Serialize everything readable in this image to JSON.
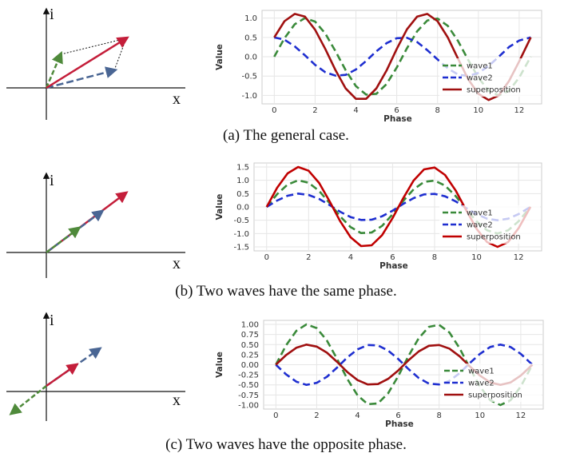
{
  "captions": [
    "(a) The general case.",
    "(b) Two waves have the same phase.",
    "(c) Two waves have the opposite phase."
  ],
  "vector_diagram": {
    "y_axis_label": "i",
    "x_axis_label": "x"
  },
  "colors": {
    "wave1": "#3a8a3a",
    "wave2": "#1f2fd0",
    "superposition": "#a01010",
    "vector_blue": "#4a6694"
  },
  "chart_data": [
    {
      "type": "line",
      "xlabel": "Phase",
      "ylabel": "Value",
      "xlim": [
        -0.6,
        13.1
      ],
      "ylim": [
        -1.22,
        1.2
      ],
      "xticks": [
        0,
        2,
        4,
        6,
        8,
        10,
        12
      ],
      "xtick_labels": [
        "0",
        "2",
        "4",
        "6",
        "8",
        "10",
        "12"
      ],
      "yticks": [
        1.0,
        0.5,
        0.0,
        -0.5,
        -1.0
      ],
      "ytick_labels": [
        "1.0",
        "0.5",
        "0.0",
        "-0.5",
        "-1.0"
      ],
      "grid": true,
      "legend": "bottom-right",
      "series": [
        {
          "name": "wave1",
          "style": "dashed",
          "color": "#3a8a3a",
          "x": [
            0,
            0.5,
            1,
            1.5,
            2,
            2.5,
            3,
            3.5,
            4,
            4.5,
            5,
            5.5,
            6,
            6.5,
            7,
            7.5,
            8,
            8.5,
            9,
            9.5,
            10,
            10.5,
            11,
            11.5,
            12,
            12.566
          ],
          "y": [
            0.0,
            0.48,
            0.84,
            1.0,
            0.91,
            0.6,
            0.14,
            -0.35,
            -0.76,
            -0.98,
            -0.96,
            -0.71,
            -0.28,
            0.22,
            0.66,
            0.94,
            0.99,
            0.8,
            0.41,
            -0.08,
            -0.54,
            -0.88,
            -1.0,
            -0.88,
            -0.54,
            0.0
          ]
        },
        {
          "name": "wave2",
          "style": "dashed",
          "color": "#1f2fd0",
          "x": [
            0,
            0.5,
            1,
            1.5,
            2,
            2.5,
            3,
            3.5,
            4,
            4.5,
            5,
            5.5,
            6,
            6.5,
            7,
            7.5,
            8,
            8.5,
            9,
            9.5,
            10,
            10.5,
            11,
            11.5,
            12,
            12.566
          ],
          "y": [
            0.5,
            0.44,
            0.27,
            0.04,
            -0.21,
            -0.4,
            -0.49,
            -0.47,
            -0.33,
            -0.11,
            0.14,
            0.35,
            0.48,
            0.49,
            0.38,
            0.17,
            -0.07,
            -0.3,
            -0.46,
            -0.5,
            -0.42,
            -0.24,
            0.0,
            0.25,
            0.42,
            0.5
          ]
        },
        {
          "name": "superposition",
          "style": "solid",
          "color": "#a01010",
          "x": [
            0,
            0.5,
            1,
            1.5,
            2,
            2.5,
            3,
            3.5,
            4,
            4.5,
            5,
            5.5,
            6,
            6.5,
            7,
            7.5,
            8,
            8.5,
            9,
            9.5,
            10,
            10.5,
            11,
            11.5,
            12,
            12.566
          ],
          "y": [
            0.5,
            0.92,
            1.11,
            1.04,
            0.7,
            0.2,
            -0.35,
            -0.82,
            -1.09,
            -1.09,
            -0.82,
            -0.36,
            0.2,
            0.71,
            1.04,
            1.11,
            0.92,
            0.5,
            -0.05,
            -0.58,
            -0.96,
            -1.12,
            -1.0,
            -0.63,
            -0.12,
            0.5
          ]
        }
      ]
    },
    {
      "type": "line",
      "xlabel": "Phase",
      "ylabel": "Value",
      "xlim": [
        -0.6,
        13.1
      ],
      "ylim": [
        -1.65,
        1.65
      ],
      "xticks": [
        0,
        2,
        4,
        6,
        8,
        10,
        12
      ],
      "xtick_labels": [
        "0",
        "2",
        "4",
        "6",
        "8",
        "10",
        "12"
      ],
      "yticks": [
        1.5,
        1.0,
        0.5,
        0.0,
        -0.5,
        -1.0,
        -1.5
      ],
      "ytick_labels": [
        "1.5",
        "1.0",
        "0.5",
        "0.0",
        "-0.5",
        "-1.0",
        "-1.5"
      ],
      "grid": true,
      "legend": "bottom-right",
      "series": [
        {
          "name": "wave1",
          "style": "dashed",
          "color": "#3a8a3a",
          "x": [
            0,
            0.5,
            1,
            1.5,
            2,
            2.5,
            3,
            3.5,
            4,
            4.5,
            5,
            5.5,
            6,
            6.5,
            7,
            7.5,
            8,
            8.5,
            9,
            9.5,
            10,
            10.5,
            11,
            11.5,
            12,
            12.566
          ],
          "y": [
            0.0,
            0.48,
            0.84,
            1.0,
            0.91,
            0.6,
            0.14,
            -0.35,
            -0.76,
            -0.98,
            -0.96,
            -0.71,
            -0.28,
            0.22,
            0.66,
            0.94,
            0.99,
            0.8,
            0.41,
            -0.08,
            -0.54,
            -0.88,
            -1.0,
            -0.88,
            -0.54,
            0.0
          ]
        },
        {
          "name": "wave2",
          "style": "dashed",
          "color": "#1f2fd0",
          "x": [
            0,
            0.5,
            1,
            1.5,
            2,
            2.5,
            3,
            3.5,
            4,
            4.5,
            5,
            5.5,
            6,
            6.5,
            7,
            7.5,
            8,
            8.5,
            9,
            9.5,
            10,
            10.5,
            11,
            11.5,
            12,
            12.566
          ],
          "y": [
            0.0,
            0.24,
            0.42,
            0.5,
            0.45,
            0.3,
            0.07,
            -0.18,
            -0.38,
            -0.49,
            -0.48,
            -0.35,
            -0.14,
            0.11,
            0.33,
            0.47,
            0.49,
            0.4,
            0.21,
            -0.04,
            -0.27,
            -0.44,
            -0.5,
            -0.44,
            -0.27,
            0.0
          ]
        },
        {
          "name": "superposition",
          "style": "solid",
          "color": "#c00000",
          "x": [
            0,
            0.5,
            1,
            1.5,
            2,
            2.5,
            3,
            3.5,
            4,
            4.5,
            5,
            5.5,
            6,
            6.5,
            7,
            7.5,
            8,
            8.5,
            9,
            9.5,
            10,
            10.5,
            11,
            11.5,
            12,
            12.566
          ],
          "y": [
            0.0,
            0.72,
            1.26,
            1.5,
            1.36,
            0.9,
            0.21,
            -0.53,
            -1.14,
            -1.47,
            -1.44,
            -1.06,
            -0.42,
            0.32,
            0.99,
            1.41,
            1.48,
            1.2,
            0.62,
            -0.11,
            -0.82,
            -1.32,
            -1.5,
            -1.32,
            -0.8,
            0.0
          ]
        }
      ]
    },
    {
      "type": "line",
      "xlabel": "Phase",
      "ylabel": "Value",
      "xlim": [
        -0.6,
        13.1
      ],
      "ylim": [
        -1.1,
        1.1
      ],
      "xticks": [
        0,
        2,
        4,
        6,
        8,
        10,
        12
      ],
      "xtick_labels": [
        "0",
        "2",
        "4",
        "6",
        "8",
        "10",
        "12"
      ],
      "yticks": [
        1.0,
        0.75,
        0.5,
        0.25,
        0.0,
        -0.25,
        -0.5,
        -0.75,
        -1.0
      ],
      "ytick_labels": [
        "1.00",
        "0.75",
        "0.50",
        "0.25",
        "0.00",
        "-0.25",
        "-0.50",
        "-0.75",
        "-1.00"
      ],
      "grid": true,
      "legend": "bottom-right",
      "series": [
        {
          "name": "wave1",
          "style": "dashed",
          "color": "#3a8a3a",
          "x": [
            0,
            0.5,
            1,
            1.5,
            2,
            2.5,
            3,
            3.5,
            4,
            4.5,
            5,
            5.5,
            6,
            6.5,
            7,
            7.5,
            8,
            8.5,
            9,
            9.5,
            10,
            10.5,
            11,
            11.5,
            12,
            12.566
          ],
          "y": [
            0.0,
            0.48,
            0.84,
            1.0,
            0.91,
            0.6,
            0.14,
            -0.35,
            -0.76,
            -0.98,
            -0.96,
            -0.71,
            -0.28,
            0.22,
            0.66,
            0.94,
            0.99,
            0.8,
            0.41,
            -0.08,
            -0.54,
            -0.88,
            -1.0,
            -0.88,
            -0.54,
            0.0
          ]
        },
        {
          "name": "wave2",
          "style": "dashed",
          "color": "#1f2fd0",
          "x": [
            0,
            0.5,
            1,
            1.5,
            2,
            2.5,
            3,
            3.5,
            4,
            4.5,
            5,
            5.5,
            6,
            6.5,
            7,
            7.5,
            8,
            8.5,
            9,
            9.5,
            10,
            10.5,
            11,
            11.5,
            12,
            12.566
          ],
          "y": [
            0.0,
            -0.24,
            -0.42,
            -0.5,
            -0.45,
            -0.3,
            -0.07,
            0.18,
            0.38,
            0.49,
            0.48,
            0.35,
            0.14,
            -0.11,
            -0.33,
            -0.47,
            -0.49,
            -0.4,
            -0.21,
            0.04,
            0.27,
            0.44,
            0.5,
            0.44,
            0.27,
            0.0
          ]
        },
        {
          "name": "superposition",
          "style": "solid",
          "color": "#a01010",
          "x": [
            0,
            0.5,
            1,
            1.5,
            2,
            2.5,
            3,
            3.5,
            4,
            4.5,
            5,
            5.5,
            6,
            6.5,
            7,
            7.5,
            8,
            8.5,
            9,
            9.5,
            10,
            10.5,
            11,
            11.5,
            12,
            12.566
          ],
          "y": [
            0.0,
            0.24,
            0.42,
            0.5,
            0.45,
            0.3,
            0.07,
            -0.18,
            -0.38,
            -0.49,
            -0.48,
            -0.35,
            -0.14,
            0.11,
            0.33,
            0.47,
            0.49,
            0.4,
            0.21,
            -0.04,
            -0.27,
            -0.44,
            -0.5,
            -0.44,
            -0.27,
            0.0
          ]
        }
      ]
    }
  ]
}
